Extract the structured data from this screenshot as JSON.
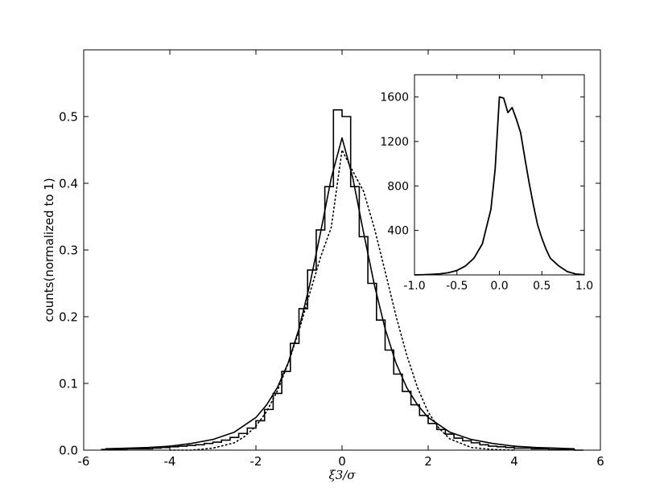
{
  "chart_data": [
    {
      "type": "line",
      "xlabel": "ξ3/σ",
      "ylabel": "counts(normalized to 1)",
      "xlim": [
        -6,
        6
      ],
      "ylim": [
        0,
        0.6
      ],
      "xticks": [
        "-6",
        "-4",
        "-2",
        "0",
        "2",
        "4",
        "6"
      ],
      "yticks": [
        "0.0",
        "0.1",
        "0.2",
        "0.3",
        "0.4",
        "0.5"
      ],
      "grid": false,
      "series": [
        {
          "style": "histogram",
          "bin_width": 0.2,
          "x": [
            -5.5,
            -5.3,
            -5.1,
            -4.9,
            -4.7,
            -4.5,
            -4.3,
            -4.1,
            -3.9,
            -3.7,
            -3.5,
            -3.3,
            -3.1,
            -2.9,
            -2.7,
            -2.5,
            -2.3,
            -2.1,
            -1.9,
            -1.7,
            -1.5,
            -1.3,
            -1.1,
            -0.9,
            -0.7,
            -0.5,
            -0.3,
            -0.1,
            0.1,
            0.3,
            0.5,
            0.7,
            0.9,
            1.1,
            1.3,
            1.5,
            1.7,
            1.9,
            2.1,
            2.3,
            2.5,
            2.7,
            2.9,
            3.1,
            3.3,
            3.5,
            3.7,
            3.9,
            4.1,
            4.3,
            4.5,
            4.7,
            4.9,
            5.1,
            5.3,
            5.5
          ],
          "values": [
            0.001,
            0.001,
            0.001,
            0.002,
            0.002,
            0.002,
            0.003,
            0.004,
            0.005,
            0.006,
            0.007,
            0.008,
            0.01,
            0.012,
            0.015,
            0.019,
            0.025,
            0.033,
            0.044,
            0.061,
            0.085,
            0.118,
            0.16,
            0.212,
            0.27,
            0.33,
            0.395,
            0.51,
            0.5,
            0.395,
            0.32,
            0.25,
            0.195,
            0.15,
            0.114,
            0.088,
            0.068,
            0.052,
            0.04,
            0.031,
            0.024,
            0.018,
            0.014,
            0.011,
            0.008,
            0.006,
            0.005,
            0.004,
            0.003,
            0.003,
            0.002,
            0.002,
            0.001,
            0.001,
            0.001,
            0.0
          ]
        },
        {
          "style": "solid",
          "x": [
            -5.5,
            -5,
            -4.5,
            -4,
            -3.5,
            -3,
            -2.5,
            -2,
            -1.75,
            -1.5,
            -1.25,
            -1,
            -0.75,
            -0.5,
            -0.25,
            0,
            0.25,
            0.5,
            0.75,
            1,
            1.25,
            1.5,
            1.75,
            2,
            2.5,
            3,
            3.5,
            4,
            4.5,
            5,
            5.4
          ],
          "values": [
            0.002,
            0.003,
            0.004,
            0.006,
            0.01,
            0.016,
            0.027,
            0.049,
            0.068,
            0.094,
            0.131,
            0.182,
            0.248,
            0.326,
            0.408,
            0.468,
            0.408,
            0.326,
            0.248,
            0.182,
            0.131,
            0.094,
            0.068,
            0.049,
            0.027,
            0.016,
            0.01,
            0.006,
            0.004,
            0.003,
            0.002
          ]
        },
        {
          "style": "dotted",
          "x": [
            -4,
            -3.5,
            -3,
            -2.5,
            -2.25,
            -2,
            -1.75,
            -1.5,
            -1.25,
            -1,
            -0.75,
            -0.5,
            -0.25,
            0,
            0.25,
            0.5,
            0.75,
            1,
            1.25,
            1.5,
            1.75,
            2,
            2.25,
            2.5,
            3,
            3.5,
            4
          ],
          "values": [
            0.0,
            0.0,
            0.003,
            0.011,
            0.021,
            0.036,
            0.058,
            0.089,
            0.13,
            0.179,
            0.235,
            0.289,
            0.334,
            0.45,
            0.418,
            0.388,
            0.333,
            0.268,
            0.202,
            0.143,
            0.094,
            0.057,
            0.033,
            0.017,
            0.004,
            0.001,
            0.0
          ]
        }
      ]
    },
    {
      "type": "line",
      "xlim": [
        -1.0,
        1.0
      ],
      "ylim": [
        0,
        1800
      ],
      "xticks": [
        "-1.0",
        "-0.5",
        "0.0",
        "0.5",
        "1.0"
      ],
      "yticks": [
        "400",
        "800",
        "1200",
        "1600"
      ],
      "grid": false,
      "series": [
        {
          "style": "solid",
          "x": [
            -1.0,
            -0.9,
            -0.8,
            -0.7,
            -0.6,
            -0.5,
            -0.4,
            -0.3,
            -0.2,
            -0.1,
            -0.05,
            0.0,
            0.05,
            0.1,
            0.15,
            0.2,
            0.25,
            0.3,
            0.35,
            0.4,
            0.45,
            0.5,
            0.55,
            0.6,
            0.7,
            0.8,
            0.9,
            1.0
          ],
          "values": [
            0,
            2,
            5,
            10,
            20,
            40,
            80,
            150,
            280,
            590,
            950,
            1600,
            1590,
            1460,
            1505,
            1400,
            1280,
            1050,
            830,
            630,
            450,
            330,
            230,
            150,
            80,
            30,
            8,
            2
          ]
        }
      ]
    }
  ]
}
